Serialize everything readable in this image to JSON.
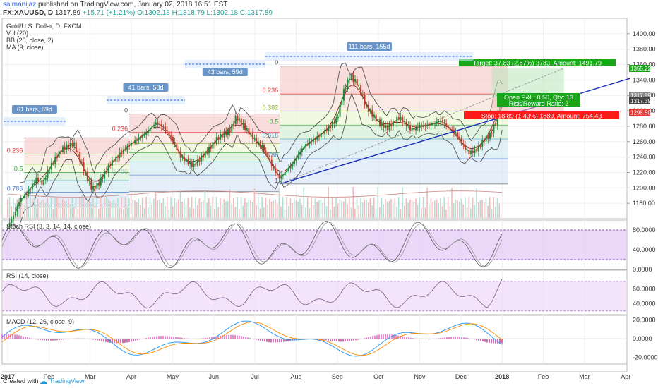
{
  "header": {
    "author": "salmanijaz",
    "published": "published on TradingView.com, January 02, 2018 16:51 EST",
    "symbol": "FX:XAUUSD, D",
    "last": "1317.89",
    "change": "+15.71 (+1.21%)",
    "ohlc": "O:1302.18 H:1318.79 L:1302.18 C:1317.89",
    "up_color": "#26a69a"
  },
  "legend": {
    "title": "Gold/U.S. Dollar, D, FXCM",
    "vol": "Vol (20)",
    "bb": "BB (20, close, 2)",
    "ma": "MA (9, close)"
  },
  "chart_data": {
    "type": "candlestick",
    "symbol": "XAUUSD",
    "price_axis": {
      "ylim": [
        1160,
        1420
      ],
      "ticks": [
        "1400.00",
        "1380.00",
        "1360.00",
        "1340.00",
        "1320.00",
        "1300.00",
        "1280.00",
        "1260.00",
        "1240.00",
        "1220.00",
        "1200.00",
        "1180.00"
      ]
    },
    "x_ticks": [
      "2017",
      "Feb",
      "Mar",
      "Apr",
      "May",
      "Jun",
      "Jul",
      "Aug",
      "Sep",
      "Oct",
      "Nov",
      "Dec",
      "2018",
      "Feb",
      "Mar",
      "Apr"
    ],
    "x_months": [
      0,
      1,
      2,
      3,
      4,
      5,
      6,
      7,
      8,
      9,
      10,
      11,
      12,
      13,
      14,
      15
    ],
    "close_series": {
      "months": [
        0,
        0.15,
        0.3,
        0.5,
        0.7,
        0.85,
        1.0,
        1.3,
        1.6,
        1.8,
        1.95,
        2.05,
        2.2,
        2.5,
        2.8,
        3.0,
        3.3,
        3.6,
        3.8,
        4.0,
        4.2,
        4.5,
        4.8,
        5.1,
        5.4,
        5.55,
        5.7,
        6.0,
        6.2,
        6.45,
        6.6,
        6.9,
        7.2,
        7.5,
        7.8,
        8.0,
        8.15,
        8.3,
        8.5,
        8.7,
        9.0,
        9.2,
        9.5,
        9.8,
        10.0,
        10.3,
        10.5,
        10.7,
        10.9,
        11.05,
        11.2,
        11.4,
        11.55,
        11.7,
        11.85,
        12.0
      ],
      "prices": [
        1150,
        1165,
        1185,
        1195,
        1212,
        1205,
        1225,
        1250,
        1258,
        1230,
        1210,
        1198,
        1205,
        1232,
        1248,
        1258,
        1268,
        1285,
        1278,
        1262,
        1240,
        1228,
        1245,
        1265,
        1275,
        1293,
        1282,
        1262,
        1252,
        1225,
        1212,
        1230,
        1255,
        1265,
        1278,
        1290,
        1325,
        1345,
        1335,
        1305,
        1285,
        1277,
        1292,
        1275,
        1280,
        1282,
        1288,
        1278,
        1270,
        1255,
        1245,
        1250,
        1262,
        1268,
        1285,
        1317.89
      ]
    },
    "price_labels": [
      "1355.22",
      "1317.89",
      "1317.39",
      "1298.50"
    ],
    "fib_retracements": [
      {
        "start_month": 2.95,
        "end_month": 6.6,
        "high": 1296,
        "low": 1195,
        "levels": [
          "0",
          "0.236",
          "0.5",
          "0.786"
        ]
      },
      {
        "start_month": 6.6,
        "end_month": 12.15,
        "high": 1358,
        "low": 1205,
        "levels": [
          "0",
          "0.236",
          "0.382",
          "0.5",
          "0.618",
          "0.786",
          "1"
        ]
      },
      {
        "start_month": 0.4,
        "end_month": 2.95,
        "high": 1265,
        "low": 1175,
        "levels": [
          "0.236",
          "0.5",
          "0.786"
        ]
      }
    ],
    "trendline": {
      "from": {
        "month": 6.6,
        "price": 1205
      },
      "to": {
        "month": 15.1,
        "price": 1342
      }
    },
    "measurements": [
      "61 bars, 89d",
      "41 bars, 58d",
      "43 bars, 59d",
      "111 bars, 155d"
    ],
    "position": {
      "target": "Target: 37.83 (2.87%) 3783, Amount: 1491.79",
      "open_pnl": "Open P&L: 0.50, Qty: 13",
      "rr": "Risk/Reward Ratio: 2",
      "stop": "Stop: 18.89 (1.43%) 1889, Amount: 754.43",
      "entry_price": 1317.39,
      "target_price": 1355.22,
      "stop_price": 1298.5,
      "target_color": "#1aa51a",
      "stop_color": "#ff1a1a"
    },
    "stoch_rsi": {
      "label": "Stoch RSI (3, 3, 14, 14, close)",
      "ticks": [
        "80.0000",
        "40.0000",
        "0.0000"
      ],
      "ylim": [
        0,
        100
      ],
      "band": [
        20,
        80
      ]
    },
    "rsi": {
      "label": "RSI (14, close)",
      "ticks": [
        "60.0000",
        "40.0000"
      ],
      "ylim": [
        25,
        85
      ],
      "band": [
        30,
        70
      ]
    },
    "macd": {
      "label": "MACD (12, 26, close, 9)",
      "ticks": [
        "20.0000",
        "0.0000",
        "-20.0000"
      ],
      "ylim": [
        -27,
        25
      ]
    }
  },
  "footer": {
    "created_with": "Created with",
    "brand": "TradingView"
  }
}
